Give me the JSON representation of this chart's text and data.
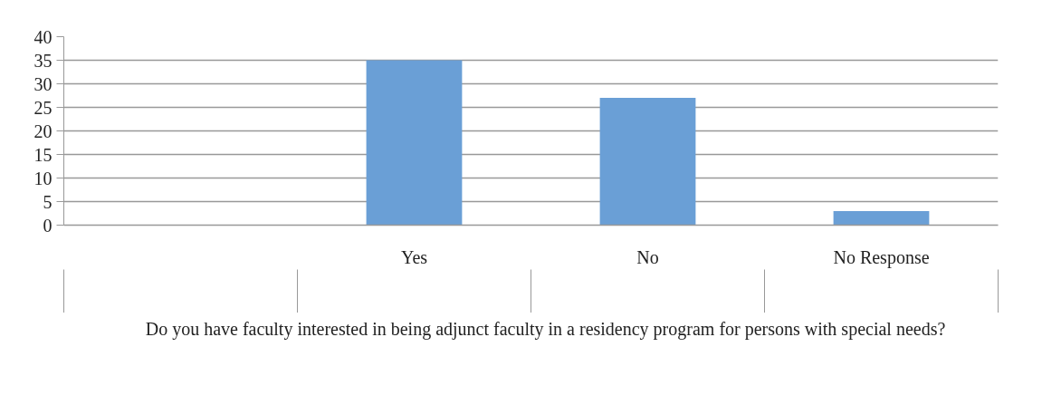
{
  "chart_data": {
    "type": "bar",
    "categories": [
      null,
      "Yes",
      "No",
      "No Response"
    ],
    "values": [
      null,
      35,
      27,
      3
    ],
    "color": "#6a9fd6",
    "xlabel": "Do you have faculty interested in being adjunct faculty in a residency program for persons with special needs?",
    "ylim": [
      0,
      40
    ],
    "yticks": [
      0,
      5,
      10,
      15,
      20,
      25,
      30,
      35,
      40
    ],
    "grid": "y"
  }
}
